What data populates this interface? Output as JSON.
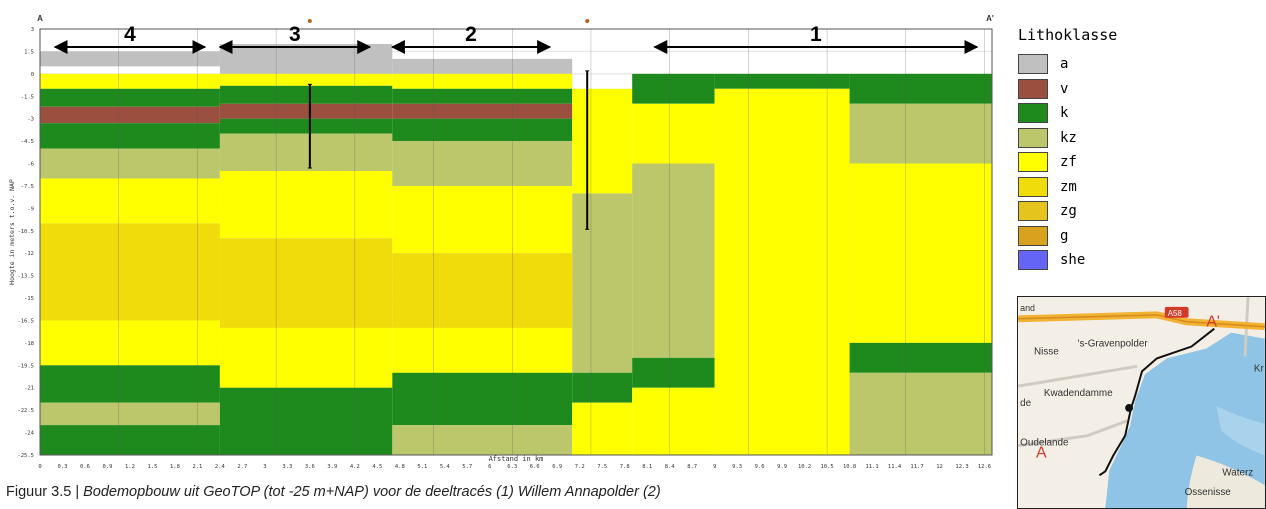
{
  "chart_data": {
    "type": "heatmap",
    "title": "",
    "xlabel": "Afstand in km",
    "ylabel": "Hoogte in meters t.o.v. NAP",
    "x_ticks": [
      "0",
      "0.3",
      "0.6",
      "0.9",
      "1.2",
      "1.5",
      "1.8",
      "2.1",
      "2.4",
      "2.7",
      "3",
      "3.3",
      "3.6",
      "3.9",
      "4.2",
      "4.5",
      "4.8",
      "5.1",
      "5.4",
      "5.7",
      "6",
      "6.3",
      "6.6",
      "6.9",
      "7.2",
      "7.5",
      "7.8",
      "8.1",
      "8.4",
      "8.7",
      "9",
      "9.3",
      "9.6",
      "9.9",
      "10.2",
      "10.5",
      "10.8",
      "11.1",
      "11.4",
      "11.7",
      "12",
      "12.3",
      "12.6"
    ],
    "y_ticks": [
      "3",
      "1.5",
      "0",
      "-1.5",
      "-3",
      "-4.5",
      "-6",
      "-7.5",
      "-9",
      "-10.5",
      "-12",
      "-13.5",
      "-15",
      "-16.5",
      "-18",
      "-19.5",
      "-21",
      "-22.5",
      "-24",
      "-25.5"
    ],
    "xlim": [
      0,
      12.7
    ],
    "ylim": [
      -25.5,
      3
    ],
    "section_start_label": "A",
    "section_end_label": "A'",
    "segments": [
      {
        "label": "4",
        "from_km": 0.2,
        "to_km": 2.2
      },
      {
        "label": "3",
        "from_km": 2.4,
        "to_km": 4.4
      },
      {
        "label": "2",
        "from_km": 4.7,
        "to_km": 6.8
      },
      {
        "label": "1",
        "from_km": 8.2,
        "to_km": 12.5
      }
    ],
    "vertical_markers_km": [
      3.6,
      7.3
    ],
    "lithoklasse_layers_by_zone": [
      {
        "from_km": 0,
        "to_km": 2.4,
        "layers": [
          {
            "class": "a",
            "top": 1.5,
            "bottom": 0.5
          },
          {
            "class": "zf",
            "top": 0,
            "bottom": -1
          },
          {
            "class": "k",
            "top": -1,
            "bottom": -2.2
          },
          {
            "class": "v",
            "top": -2.2,
            "bottom": -3.3
          },
          {
            "class": "k",
            "top": -3.3,
            "bottom": -5
          },
          {
            "class": "kz",
            "top": -5,
            "bottom": -7
          },
          {
            "class": "zf",
            "top": -7,
            "bottom": -10
          },
          {
            "class": "zm",
            "top": -10,
            "bottom": -16.5
          },
          {
            "class": "zf",
            "top": -16.5,
            "bottom": -19.5
          },
          {
            "class": "k",
            "top": -19.5,
            "bottom": -22
          },
          {
            "class": "kz",
            "top": -22,
            "bottom": -23.5
          },
          {
            "class": "k",
            "top": -23.5,
            "bottom": -25.5
          }
        ]
      },
      {
        "from_km": 2.4,
        "to_km": 4.7,
        "layers": [
          {
            "class": "a",
            "top": 2,
            "bottom": 0
          },
          {
            "class": "zf",
            "top": 0,
            "bottom": -0.8
          },
          {
            "class": "k",
            "top": -0.8,
            "bottom": -2
          },
          {
            "class": "v",
            "top": -2,
            "bottom": -3
          },
          {
            "class": "k",
            "top": -3,
            "bottom": -4
          },
          {
            "class": "kz",
            "top": -4,
            "bottom": -6.5
          },
          {
            "class": "zf",
            "top": -6.5,
            "bottom": -11
          },
          {
            "class": "zm",
            "top": -11,
            "bottom": -17
          },
          {
            "class": "zf",
            "top": -17,
            "bottom": -21
          },
          {
            "class": "k",
            "top": -21,
            "bottom": -25.5
          }
        ]
      },
      {
        "from_km": 4.7,
        "to_km": 7.1,
        "layers": [
          {
            "class": "a",
            "top": 1,
            "bottom": 0
          },
          {
            "class": "zf",
            "top": 0,
            "bottom": -1
          },
          {
            "class": "k",
            "top": -1,
            "bottom": -2
          },
          {
            "class": "v",
            "top": -2,
            "bottom": -3
          },
          {
            "class": "k",
            "top": -3,
            "bottom": -4.5
          },
          {
            "class": "kz",
            "top": -4.5,
            "bottom": -7.5
          },
          {
            "class": "zf",
            "top": -7.5,
            "bottom": -12
          },
          {
            "class": "zm",
            "top": -12,
            "bottom": -17
          },
          {
            "class": "zf",
            "top": -17,
            "bottom": -20
          },
          {
            "class": "k",
            "top": -20,
            "bottom": -23.5
          },
          {
            "class": "kz",
            "top": -23.5,
            "bottom": -25.5
          }
        ]
      },
      {
        "from_km": 7.1,
        "to_km": 7.9,
        "layers": [
          {
            "class": "zf",
            "top": -1,
            "bottom": -8
          },
          {
            "class": "kz",
            "top": -8,
            "bottom": -20
          },
          {
            "class": "k",
            "top": -20,
            "bottom": -22
          },
          {
            "class": "zf",
            "top": -22,
            "bottom": -25.5
          }
        ]
      },
      {
        "from_km": 7.9,
        "to_km": 9.0,
        "layers": [
          {
            "class": "k",
            "top": 0,
            "bottom": -2
          },
          {
            "class": "zf",
            "top": -2,
            "bottom": -6
          },
          {
            "class": "kz",
            "top": -6,
            "bottom": -19
          },
          {
            "class": "k",
            "top": -19,
            "bottom": -21
          },
          {
            "class": "zf",
            "top": -21,
            "bottom": -25.5
          }
        ]
      },
      {
        "from_km": 9.0,
        "to_km": 10.8,
        "layers": [
          {
            "class": "k",
            "top": 0,
            "bottom": -1
          },
          {
            "class": "zf",
            "top": -1,
            "bottom": -25.5
          }
        ]
      },
      {
        "from_km": 10.8,
        "to_km": 12.7,
        "layers": [
          {
            "class": "k",
            "top": 0,
            "bottom": -2
          },
          {
            "class": "kz",
            "top": -2,
            "bottom": -6
          },
          {
            "class": "zf",
            "top": -6,
            "bottom": -18
          },
          {
            "class": "k",
            "top": -18,
            "bottom": -20
          },
          {
            "class": "kz",
            "top": -20,
            "bottom": -25.5
          }
        ]
      }
    ]
  },
  "legend": {
    "title": "Lithoklasse",
    "items": [
      {
        "label": "a",
        "color": "#c0c0c0"
      },
      {
        "label": "v",
        "color": "#9b4f3e"
      },
      {
        "label": "k",
        "color": "#1e8a1e"
      },
      {
        "label": "kz",
        "color": "#bcc66a"
      },
      {
        "label": "zf",
        "color": "#ffff00"
      },
      {
        "label": "zm",
        "color": "#f0dc0a"
      },
      {
        "label": "zg",
        "color": "#e6c41e"
      },
      {
        "label": "g",
        "color": "#d9a21e"
      },
      {
        "label": "she",
        "color": "#6464f5"
      }
    ]
  },
  "map": {
    "labels": [
      {
        "text": "and"
      },
      {
        "text": "A58"
      },
      {
        "text": "A'"
      },
      {
        "text": "Nisse"
      },
      {
        "text": "'s-Gravenpolder"
      },
      {
        "text": "Kwadendamme"
      },
      {
        "text": "de"
      },
      {
        "text": "Oudelande"
      },
      {
        "text": "A"
      },
      {
        "text": "Kr"
      },
      {
        "text": "Waterz"
      },
      {
        "text": "Ossenisse"
      }
    ]
  },
  "caption": {
    "lead": "Figuur 3.5 | ",
    "text": "Bodemopbouw uit GeoTOP (tot -25 m+NAP) voor de deeltracés (1) Willem Annapolder (2)"
  }
}
